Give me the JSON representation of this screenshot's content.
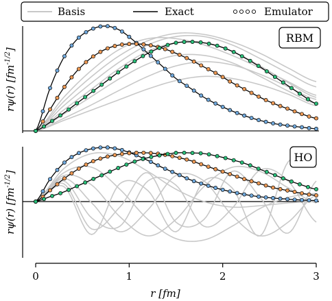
{
  "legend": {
    "items": [
      {
        "label": "Basis",
        "style": "line",
        "color": "#c8c8c8"
      },
      {
        "label": "Exact",
        "style": "line",
        "color": "#000000"
      },
      {
        "label": "Emulator",
        "style": "markers",
        "color": "#ffffff"
      }
    ],
    "location": "top-center"
  },
  "chart_data": [
    {
      "type": "line",
      "panel_label": "RBM",
      "xlabel": "r [fm]",
      "ylabel": "rψ(r) [fm^{-1/2}]",
      "xlim": [
        0,
        3
      ],
      "ylim": [
        -0.02,
        1.0
      ],
      "xticks": [
        "0",
        "1",
        "2",
        "3"
      ],
      "legend_placement": "top",
      "exact_color": "#000000",
      "series": [
        {
          "role": "emulator-states",
          "color": "#6fa8dc",
          "marker_count": 40,
          "x": [
            0,
            0.15,
            0.3,
            0.45,
            0.6,
            0.75,
            0.9,
            1.05,
            1.2,
            1.35,
            1.5,
            1.65,
            1.8,
            1.95,
            2.1,
            2.25,
            2.4,
            2.55,
            2.7,
            2.85,
            3.0
          ],
          "y": [
            0,
            0.4,
            0.7,
            0.88,
            0.97,
            1.0,
            0.96,
            0.86,
            0.74,
            0.62,
            0.5,
            0.41,
            0.32,
            0.25,
            0.19,
            0.14,
            0.1,
            0.07,
            0.05,
            0.035,
            0.02
          ]
        },
        {
          "role": "emulator-states",
          "color": "#ee9a55",
          "marker_count": 40,
          "x": [
            0,
            0.15,
            0.3,
            0.45,
            0.6,
            0.75,
            0.9,
            1.05,
            1.2,
            1.35,
            1.5,
            1.65,
            1.8,
            1.95,
            2.1,
            2.25,
            2.4,
            2.55,
            2.7,
            2.85,
            3.0
          ],
          "y": [
            0,
            0.2,
            0.41,
            0.58,
            0.7,
            0.78,
            0.82,
            0.83,
            0.82,
            0.79,
            0.74,
            0.68,
            0.61,
            0.54,
            0.46,
            0.39,
            0.32,
            0.26,
            0.21,
            0.16,
            0.12
          ]
        },
        {
          "role": "emulator-states",
          "color": "#2bbf7a",
          "marker_count": 35,
          "x": [
            0,
            0.15,
            0.3,
            0.45,
            0.6,
            0.75,
            0.9,
            1.05,
            1.2,
            1.35,
            1.5,
            1.65,
            1.8,
            1.95,
            2.1,
            2.25,
            2.4,
            2.55,
            2.7,
            2.85,
            3.0
          ],
          "y": [
            0,
            0.08,
            0.17,
            0.27,
            0.37,
            0.47,
            0.57,
            0.66,
            0.74,
            0.8,
            0.84,
            0.85,
            0.84,
            0.81,
            0.76,
            0.69,
            0.61,
            0.52,
            0.43,
            0.34,
            0.26
          ]
        }
      ],
      "basis": [
        {
          "x": [
            0,
            0.3,
            0.6,
            0.9,
            1.2,
            1.5,
            1.8,
            2.1,
            2.4,
            2.7,
            3.0
          ],
          "y": [
            0,
            0.32,
            0.58,
            0.78,
            0.88,
            0.88,
            0.82,
            0.72,
            0.6,
            0.47,
            0.34
          ]
        },
        {
          "x": [
            0,
            0.3,
            0.6,
            0.9,
            1.2,
            1.5,
            1.8,
            2.1,
            2.4,
            2.7,
            3.0
          ],
          "y": [
            0,
            0.28,
            0.52,
            0.72,
            0.86,
            0.93,
            0.92,
            0.85,
            0.74,
            0.6,
            0.47
          ]
        },
        {
          "x": [
            0,
            0.3,
            0.6,
            0.9,
            1.2,
            1.5,
            1.8,
            2.1,
            2.4,
            2.7,
            3.0
          ],
          "y": [
            0,
            0.24,
            0.46,
            0.66,
            0.82,
            0.9,
            0.9,
            0.82,
            0.69,
            0.55,
            0.42
          ]
        },
        {
          "x": [
            0,
            0.3,
            0.6,
            0.9,
            1.2,
            1.5,
            1.8,
            2.1,
            2.4,
            2.7,
            3.0
          ],
          "y": [
            0,
            0.2,
            0.4,
            0.6,
            0.76,
            0.84,
            0.84,
            0.76,
            0.62,
            0.46,
            0.32
          ]
        },
        {
          "x": [
            0,
            0.3,
            0.6,
            0.9,
            1.2,
            1.5,
            1.8,
            2.1,
            2.4,
            2.7,
            3.0
          ],
          "y": [
            0,
            0.16,
            0.33,
            0.5,
            0.64,
            0.72,
            0.72,
            0.65,
            0.52,
            0.38,
            0.26
          ]
        },
        {
          "x": [
            0,
            0.3,
            0.6,
            0.9,
            1.2,
            1.5,
            1.8,
            2.1,
            2.4,
            2.7,
            3.0
          ],
          "y": [
            0,
            0.12,
            0.25,
            0.39,
            0.52,
            0.62,
            0.66,
            0.63,
            0.54,
            0.42,
            0.3
          ]
        },
        {
          "x": [
            0,
            0.3,
            0.6,
            0.9,
            1.2,
            1.5,
            1.8,
            2.1,
            2.4,
            2.7,
            3.0
          ],
          "y": [
            0,
            0.1,
            0.2,
            0.3,
            0.4,
            0.48,
            0.52,
            0.5,
            0.44,
            0.35,
            0.24
          ]
        }
      ]
    },
    {
      "type": "line",
      "panel_label": "HO",
      "xlabel": "r [fm]",
      "ylabel": "rψ(r) [fm^{-1/2}]",
      "xlim": [
        0,
        3
      ],
      "ylim": [
        -0.82,
        0.8
      ],
      "xticks": [
        "0",
        "1",
        "2",
        "3"
      ],
      "exact_color": "#000000",
      "series": [
        {
          "role": "emulator-states",
          "color": "#6fa8dc",
          "marker_count": 40,
          "x": [
            0,
            0.15,
            0.3,
            0.45,
            0.6,
            0.75,
            0.9,
            1.05,
            1.2,
            1.35,
            1.5,
            1.65,
            1.8,
            1.95,
            2.1,
            2.25,
            2.4,
            2.55,
            2.7,
            2.85,
            3.0
          ],
          "y": [
            0,
            0.32,
            0.56,
            0.7,
            0.77,
            0.79,
            0.76,
            0.69,
            0.6,
            0.5,
            0.41,
            0.32,
            0.25,
            0.19,
            0.14,
            0.1,
            0.07,
            0.05,
            0.035,
            0.022,
            0.015
          ]
        },
        {
          "role": "emulator-states",
          "color": "#ee9a55",
          "marker_count": 40,
          "x": [
            0,
            0.15,
            0.3,
            0.45,
            0.6,
            0.75,
            0.9,
            1.05,
            1.2,
            1.35,
            1.5,
            1.65,
            1.8,
            1.95,
            2.1,
            2.25,
            2.4,
            2.55,
            2.7,
            2.85,
            3.0
          ],
          "y": [
            0,
            0.16,
            0.33,
            0.47,
            0.58,
            0.65,
            0.69,
            0.71,
            0.71,
            0.69,
            0.65,
            0.6,
            0.53,
            0.46,
            0.39,
            0.32,
            0.26,
            0.2,
            0.16,
            0.12,
            0.09
          ]
        },
        {
          "role": "emulator-states",
          "color": "#2bbf7a",
          "marker_count": 35,
          "x": [
            0,
            0.15,
            0.3,
            0.45,
            0.6,
            0.75,
            0.9,
            1.05,
            1.2,
            1.35,
            1.5,
            1.65,
            1.8,
            1.95,
            2.1,
            2.25,
            2.4,
            2.55,
            2.7,
            2.85,
            3.0
          ],
          "y": [
            0,
            0.07,
            0.14,
            0.23,
            0.32,
            0.41,
            0.5,
            0.58,
            0.64,
            0.68,
            0.71,
            0.71,
            0.7,
            0.66,
            0.61,
            0.55,
            0.47,
            0.39,
            0.31,
            0.24,
            0.18
          ]
        }
      ],
      "basis": [
        {
          "x": [
            0,
            0.3,
            0.6,
            0.9,
            1.2,
            1.5,
            1.8,
            2.1,
            2.4,
            2.7,
            3.0
          ],
          "y": [
            0,
            0.48,
            0.7,
            0.66,
            0.44,
            0.18,
            0.0,
            -0.08,
            -0.06,
            -0.02,
            0.0
          ]
        },
        {
          "x": [
            0,
            0.3,
            0.6,
            0.9,
            1.2,
            1.5,
            1.8,
            2.1,
            2.4,
            2.7,
            3.0
          ],
          "y": [
            0,
            0.42,
            0.5,
            0.18,
            -0.26,
            -0.54,
            -0.56,
            -0.36,
            -0.1,
            0.06,
            0.12
          ]
        },
        {
          "x": [
            0,
            0.3,
            0.6,
            0.9,
            1.2,
            1.5,
            1.8,
            2.1,
            2.4,
            2.7,
            3.0
          ],
          "y": [
            0,
            0.38,
            0.24,
            -0.22,
            -0.5,
            -0.26,
            0.22,
            0.5,
            0.44,
            0.2,
            -0.02
          ]
        },
        {
          "x": [
            0,
            0.3,
            0.6,
            0.9,
            1.2,
            1.5,
            1.8,
            2.1,
            2.4,
            2.7,
            3.0
          ],
          "y": [
            0,
            0.34,
            -0.02,
            -0.44,
            -0.12,
            0.38,
            0.3,
            -0.2,
            -0.5,
            -0.3,
            0.1
          ]
        },
        {
          "x": [
            0,
            0.3,
            0.6,
            0.9,
            1.2,
            1.5,
            1.8,
            2.1,
            2.4,
            2.7,
            3.0
          ],
          "y": [
            0,
            0.3,
            -0.24,
            -0.36,
            0.3,
            0.24,
            -0.36,
            -0.1,
            0.46,
            0.3,
            -0.3
          ]
        },
        {
          "x": [
            0,
            0.3,
            0.6,
            0.9,
            1.2,
            1.5,
            1.8,
            2.1,
            2.4,
            2.7,
            3.0
          ],
          "y": [
            0,
            0.26,
            -0.4,
            -0.08,
            0.42,
            -0.3,
            -0.26,
            0.44,
            0.06,
            -0.46,
            0.3
          ]
        },
        {
          "x": [
            0,
            0.3,
            0.6,
            0.9,
            1.2,
            1.5,
            1.8,
            2.1,
            2.4,
            2.7,
            3.0
          ],
          "y": [
            0,
            0.22,
            -0.48,
            0.26,
            0.16,
            -0.44,
            0.3,
            0.2,
            -0.5,
            0.58,
            0.5
          ]
        }
      ]
    }
  ]
}
